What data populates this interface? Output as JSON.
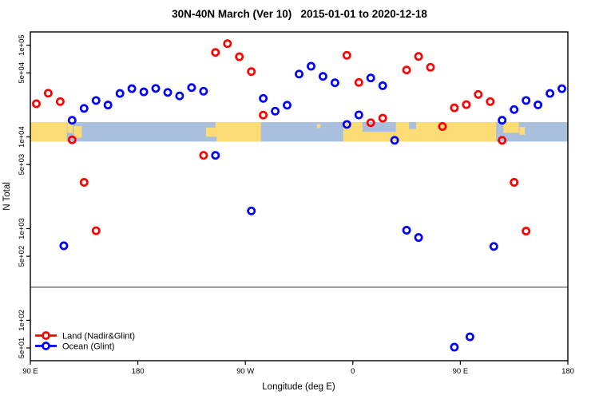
{
  "title": "30N-40N March (Ver 10)   2015-01-01 to 2020-12-18",
  "chart_data": {
    "type": "scatter",
    "title": "30N-40N March (Ver 10)   2015-01-01 to 2020-12-18",
    "xlabel": "Longitude (deg E)",
    "ylabel": "N Total",
    "x_axis": {
      "range": [
        90,
        540
      ],
      "note": "longitude axis wraps past 180/360",
      "ticks": [
        90,
        180,
        270,
        360,
        450,
        540
      ],
      "tick_labels": [
        "90 E",
        "180",
        "90 W",
        "0",
        "90 E",
        "180"
      ]
    },
    "y_axis": {
      "scale": "log",
      "range": [
        40,
        130000
      ],
      "ticks": [
        100000,
        50000,
        10000,
        5000,
        1000,
        500,
        100,
        50
      ],
      "tick_labels": [
        "1e+05",
        "5e+04",
        "1e+04",
        "5e+03",
        "1e+03",
        "5e+02",
        "1e+02",
        "5e+01"
      ]
    },
    "divider_line_value": 230,
    "divider_color": "#999999",
    "legend": [
      {
        "label": "Land (Nadir&Glint)",
        "color": "#ff0000"
      },
      {
        "label": "Ocean (Glint)",
        "color": "#0000ff"
      }
    ],
    "series": [
      {
        "name": "Land (Nadir&Glint)",
        "color": "#ff0000",
        "points": [
          [
            95,
            23000
          ],
          [
            105,
            30000
          ],
          [
            115,
            24300
          ],
          [
            125,
            9300
          ],
          [
            135,
            3200
          ],
          [
            145,
            950
          ],
          [
            235,
            6300
          ],
          [
            245,
            83500
          ],
          [
            255,
            104000
          ],
          [
            265,
            75000
          ],
          [
            275,
            51600
          ],
          [
            285,
            17300
          ],
          [
            355,
            77700
          ],
          [
            365,
            39300
          ],
          [
            375,
            14300
          ],
          [
            385,
            16000
          ],
          [
            405,
            53700
          ],
          [
            415,
            75500
          ],
          [
            425,
            57500
          ],
          [
            435,
            13000
          ],
          [
            445,
            20800
          ],
          [
            455,
            22500
          ],
          [
            465,
            29100
          ],
          [
            475,
            24300
          ],
          [
            485,
            9200
          ],
          [
            495,
            3200
          ],
          [
            505,
            940
          ]
        ]
      },
      {
        "name": "Ocean (Glint)",
        "color": "#0000ff",
        "points": [
          [
            118,
            650
          ],
          [
            125,
            15200
          ],
          [
            135,
            20500
          ],
          [
            145,
            25000
          ],
          [
            155,
            22300
          ],
          [
            165,
            29800
          ],
          [
            175,
            33600
          ],
          [
            185,
            31000
          ],
          [
            195,
            33800
          ],
          [
            205,
            30600
          ],
          [
            215,
            28000
          ],
          [
            225,
            34600
          ],
          [
            235,
            31500
          ],
          [
            245,
            6300
          ],
          [
            275,
            1560
          ],
          [
            285,
            26300
          ],
          [
            295,
            19100
          ],
          [
            305,
            22200
          ],
          [
            315,
            48500
          ],
          [
            325,
            59000
          ],
          [
            335,
            45800
          ],
          [
            345,
            39000
          ],
          [
            355,
            13700
          ],
          [
            365,
            17400
          ],
          [
            375,
            44000
          ],
          [
            385,
            36200
          ],
          [
            395,
            9200
          ],
          [
            405,
            960
          ],
          [
            415,
            800
          ],
          [
            445,
            51
          ],
          [
            458,
            66
          ],
          [
            478,
            640
          ],
          [
            485,
            15200
          ],
          [
            495,
            19900
          ],
          [
            505,
            25000
          ],
          [
            515,
            22400
          ],
          [
            525,
            29800
          ],
          [
            535,
            33600
          ]
        ]
      }
    ],
    "map_band": {
      "value_top": 14500,
      "value_bottom": 8900,
      "ocean_color": "#a9bfde",
      "land_color": "#fcdc73",
      "land_segments": [
        {
          "lon_from": 90,
          "lon_to": 120.5,
          "frac_top": 0,
          "frac_bottom": 1
        },
        {
          "lon_from": 121,
          "lon_to": 125.5,
          "frac_top": 0,
          "frac_bottom": 0.55
        },
        {
          "lon_from": 126.5,
          "lon_to": 133,
          "frac_top": 0.2,
          "frac_bottom": 0.8
        },
        {
          "lon_from": 237,
          "lon_to": 283,
          "frac_top": 0,
          "frac_bottom": 1
        },
        {
          "lon_from": 330,
          "lon_to": 333,
          "frac_top": 0.1,
          "frac_bottom": 0.3
        },
        {
          "lon_from": 352,
          "lon_to": 480,
          "frac_top": 0,
          "frac_bottom": 1
        },
        {
          "lon_from": 486,
          "lon_to": 499,
          "frac_top": 0,
          "frac_bottom": 0.55
        },
        {
          "lon_from": 499.5,
          "lon_to": 504,
          "frac_top": 0.25,
          "frac_bottom": 0.65
        }
      ],
      "ocean_patches": [
        {
          "lon_from": 237,
          "lon_to": 245,
          "frac_top": 0,
          "frac_bottom": 0.28
        },
        {
          "lon_from": 237,
          "lon_to": 246,
          "frac_top": 0.75,
          "frac_bottom": 1
        },
        {
          "lon_from": 368,
          "lon_to": 396,
          "frac_top": 0,
          "frac_bottom": 0.5
        },
        {
          "lon_from": 407,
          "lon_to": 413,
          "frac_top": 0,
          "frac_bottom": 0.35
        }
      ]
    }
  }
}
